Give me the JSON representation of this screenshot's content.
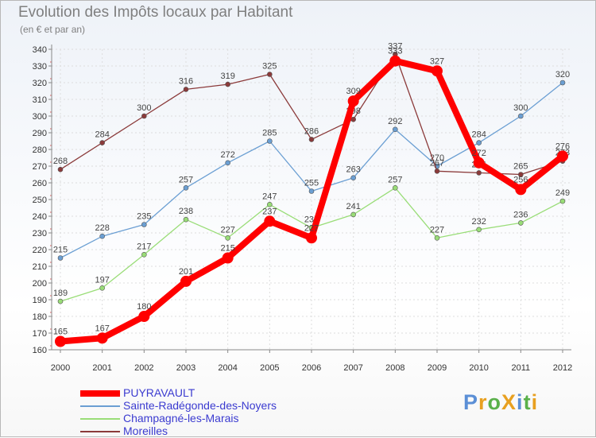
{
  "chart_data": {
    "type": "line",
    "title": "Evolution des Impôts locaux par Habitant",
    "subtitle": "(en € et par an)",
    "categories": [
      "2000",
      "2001",
      "2002",
      "2003",
      "2004",
      "2005",
      "2006",
      "2007",
      "2008",
      "2009",
      "2010",
      "2011",
      "2012"
    ],
    "ylim": [
      160,
      340
    ],
    "yticks": [
      160,
      170,
      180,
      190,
      200,
      210,
      220,
      230,
      240,
      250,
      260,
      270,
      280,
      290,
      300,
      310,
      320,
      330,
      340
    ],
    "grid": true,
    "legend_position": "bottom-left",
    "series": [
      {
        "name": "PUYRAVAULT",
        "color": "#ff0000",
        "values": [
          165,
          167,
          180,
          201,
          215,
          237,
          227,
          309,
          333,
          327,
          272,
          256,
          276
        ]
      },
      {
        "name": "Sainte-Radégonde-des-Noyers",
        "color": "#6b9fd3",
        "values": [
          215,
          228,
          235,
          257,
          272,
          285,
          255,
          263,
          292,
          270,
          284,
          300,
          320
        ]
      },
      {
        "name": "Champagné-les-Marais",
        "color": "#99dd77",
        "values": [
          189,
          197,
          217,
          238,
          227,
          247,
          233,
          241,
          257,
          227,
          232,
          236,
          249
        ]
      },
      {
        "name": "Moreilles",
        "color": "#8b3a3a",
        "values": [
          268,
          284,
          300,
          316,
          319,
          325,
          286,
          298,
          337,
          267,
          266,
          265,
          273
        ]
      }
    ]
  },
  "logo": {
    "text": "ProXiti",
    "letters": [
      "P",
      "r",
      "o",
      "X",
      "i",
      "t",
      "i"
    ],
    "colors": [
      "#5b8fd6",
      "#e8a020",
      "#5ab04a",
      "#e8a020",
      "#5b8fd6",
      "#5ab04a",
      "#e8a020"
    ]
  }
}
